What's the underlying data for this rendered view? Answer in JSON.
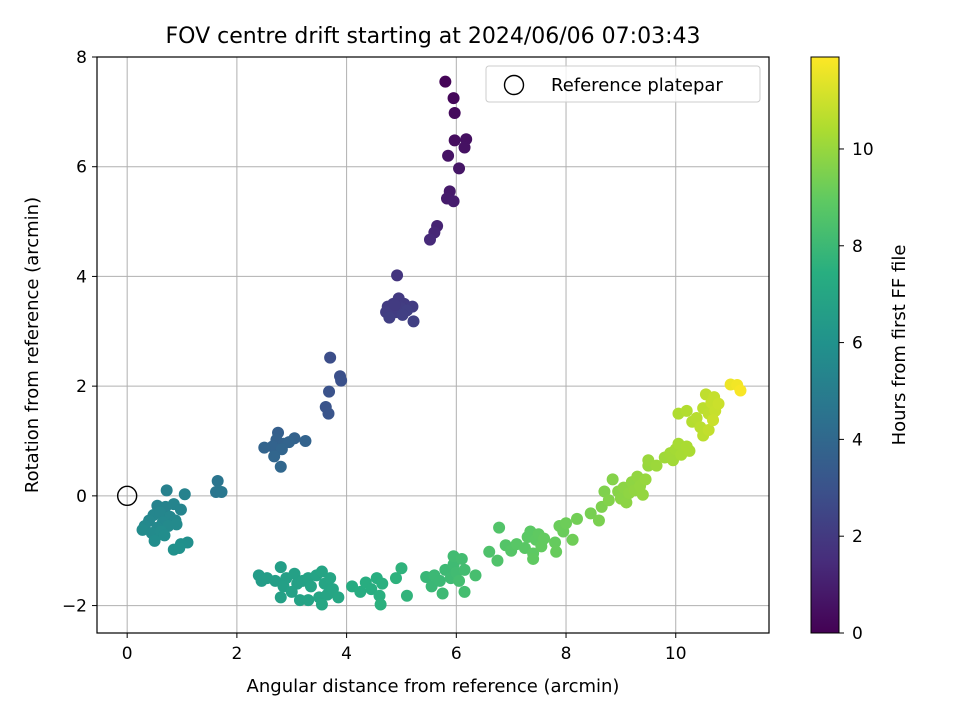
{
  "chart_data": {
    "type": "scatter",
    "title": "FOV centre drift starting at 2024/06/06 07:03:43",
    "xlabel": "Angular distance from reference (arcmin)",
    "ylabel": "Rotation from reference (arcmin)",
    "xlim": [
      -0.55,
      11.7
    ],
    "ylim": [
      -2.5,
      8.0
    ],
    "xticks": [
      0,
      2,
      4,
      6,
      8,
      10
    ],
    "yticks": [
      -2,
      0,
      2,
      4,
      6,
      8
    ],
    "grid": true,
    "legend": {
      "placement": "upper right",
      "entries": [
        {
          "label": "Reference platepar",
          "marker": "open-circle"
        }
      ]
    },
    "reference_point": {
      "x": 0.0,
      "y": 0.0
    },
    "colorbar": {
      "label": "Hours from first FF file",
      "min": 0,
      "max": 11.9,
      "ticks": [
        0,
        2,
        4,
        6,
        8,
        10
      ],
      "colormap": "viridis"
    },
    "points": [
      {
        "x": 5.8,
        "y": 7.55,
        "c": 0.1
      },
      {
        "x": 5.95,
        "y": 7.25,
        "c": 0.2
      },
      {
        "x": 5.97,
        "y": 6.98,
        "c": 0.3
      },
      {
        "x": 5.97,
        "y": 6.48,
        "c": 0.4
      },
      {
        "x": 6.18,
        "y": 6.5,
        "c": 0.5
      },
      {
        "x": 6.15,
        "y": 6.35,
        "c": 0.55
      },
      {
        "x": 5.85,
        "y": 6.2,
        "c": 0.6
      },
      {
        "x": 6.05,
        "y": 5.97,
        "c": 0.7
      },
      {
        "x": 5.88,
        "y": 5.55,
        "c": 0.85
      },
      {
        "x": 5.83,
        "y": 5.42,
        "c": 0.9
      },
      {
        "x": 5.95,
        "y": 5.37,
        "c": 0.95
      },
      {
        "x": 5.65,
        "y": 4.92,
        "c": 1.2
      },
      {
        "x": 5.6,
        "y": 4.8,
        "c": 1.3
      },
      {
        "x": 5.52,
        "y": 4.67,
        "c": 1.4
      },
      {
        "x": 4.92,
        "y": 4.02,
        "c": 1.8
      },
      {
        "x": 4.85,
        "y": 3.5,
        "c": 2.0
      },
      {
        "x": 4.95,
        "y": 3.6,
        "c": 2.0
      },
      {
        "x": 4.75,
        "y": 3.45,
        "c": 2.05
      },
      {
        "x": 5.05,
        "y": 3.5,
        "c": 2.05
      },
      {
        "x": 4.8,
        "y": 3.38,
        "c": 2.1
      },
      {
        "x": 5.2,
        "y": 3.45,
        "c": 2.1
      },
      {
        "x": 4.9,
        "y": 3.35,
        "c": 2.1
      },
      {
        "x": 5.0,
        "y": 3.42,
        "c": 2.15
      },
      {
        "x": 4.72,
        "y": 3.35,
        "c": 2.15
      },
      {
        "x": 5.1,
        "y": 3.38,
        "c": 2.2
      },
      {
        "x": 4.78,
        "y": 3.25,
        "c": 2.2
      },
      {
        "x": 5.22,
        "y": 3.18,
        "c": 2.25
      },
      {
        "x": 4.88,
        "y": 3.48,
        "c": 2.05
      },
      {
        "x": 5.02,
        "y": 3.3,
        "c": 2.2
      },
      {
        "x": 3.7,
        "y": 2.52,
        "c": 2.8
      },
      {
        "x": 3.88,
        "y": 2.18,
        "c": 2.9
      },
      {
        "x": 3.9,
        "y": 2.1,
        "c": 2.95
      },
      {
        "x": 3.68,
        "y": 1.9,
        "c": 3.0
      },
      {
        "x": 3.62,
        "y": 1.62,
        "c": 3.05
      },
      {
        "x": 3.67,
        "y": 1.5,
        "c": 3.1
      },
      {
        "x": 2.75,
        "y": 1.15,
        "c": 3.6
      },
      {
        "x": 2.72,
        "y": 1.02,
        "c": 3.65
      },
      {
        "x": 2.85,
        "y": 0.95,
        "c": 3.7
      },
      {
        "x": 3.05,
        "y": 1.05,
        "c": 3.7
      },
      {
        "x": 3.25,
        "y": 1.0,
        "c": 3.75
      },
      {
        "x": 2.65,
        "y": 0.9,
        "c": 3.75
      },
      {
        "x": 2.5,
        "y": 0.88,
        "c": 3.8
      },
      {
        "x": 2.95,
        "y": 0.98,
        "c": 3.8
      },
      {
        "x": 2.82,
        "y": 0.85,
        "c": 3.85
      },
      {
        "x": 2.68,
        "y": 0.72,
        "c": 3.9
      },
      {
        "x": 2.8,
        "y": 0.53,
        "c": 3.95
      },
      {
        "x": 1.65,
        "y": 0.27,
        "c": 4.6
      },
      {
        "x": 1.62,
        "y": 0.07,
        "c": 4.65
      },
      {
        "x": 1.72,
        "y": 0.07,
        "c": 4.7
      },
      {
        "x": 0.72,
        "y": 0.1,
        "c": 5.2
      },
      {
        "x": 1.05,
        "y": 0.03,
        "c": 5.25
      },
      {
        "x": 0.55,
        "y": -0.18,
        "c": 5.3
      },
      {
        "x": 0.7,
        "y": -0.2,
        "c": 5.3
      },
      {
        "x": 0.85,
        "y": -0.15,
        "c": 5.35
      },
      {
        "x": 0.98,
        "y": -0.25,
        "c": 5.35
      },
      {
        "x": 0.48,
        "y": -0.35,
        "c": 5.4
      },
      {
        "x": 0.6,
        "y": -0.3,
        "c": 5.4
      },
      {
        "x": 0.78,
        "y": -0.38,
        "c": 5.45
      },
      {
        "x": 0.4,
        "y": -0.45,
        "c": 5.45
      },
      {
        "x": 0.65,
        "y": -0.48,
        "c": 5.5
      },
      {
        "x": 0.88,
        "y": -0.45,
        "c": 5.5
      },
      {
        "x": 0.32,
        "y": -0.55,
        "c": 5.55
      },
      {
        "x": 0.55,
        "y": -0.58,
        "c": 5.55
      },
      {
        "x": 0.75,
        "y": -0.55,
        "c": 5.6
      },
      {
        "x": 0.9,
        "y": -0.52,
        "c": 5.6
      },
      {
        "x": 0.28,
        "y": -0.62,
        "c": 5.65
      },
      {
        "x": 0.45,
        "y": -0.68,
        "c": 5.65
      },
      {
        "x": 0.62,
        "y": -0.65,
        "c": 5.7
      },
      {
        "x": 0.5,
        "y": -0.82,
        "c": 5.75
      },
      {
        "x": 0.68,
        "y": -0.72,
        "c": 5.75
      },
      {
        "x": 1.1,
        "y": -0.85,
        "c": 5.85
      },
      {
        "x": 0.98,
        "y": -0.88,
        "c": 5.9
      },
      {
        "x": 0.85,
        "y": -0.98,
        "c": 5.95
      },
      {
        "x": 0.95,
        "y": -0.95,
        "c": 5.95
      },
      {
        "x": 2.4,
        "y": -1.45,
        "c": 6.5
      },
      {
        "x": 2.45,
        "y": -1.55,
        "c": 6.5
      },
      {
        "x": 2.55,
        "y": -1.5,
        "c": 6.55
      },
      {
        "x": 2.7,
        "y": -1.55,
        "c": 6.6
      },
      {
        "x": 2.8,
        "y": -1.3,
        "c": 6.6
      },
      {
        "x": 2.9,
        "y": -1.5,
        "c": 6.65
      },
      {
        "x": 2.85,
        "y": -1.65,
        "c": 6.65
      },
      {
        "x": 3.05,
        "y": -1.42,
        "c": 6.7
      },
      {
        "x": 3.1,
        "y": -1.6,
        "c": 6.7
      },
      {
        "x": 3.0,
        "y": -1.75,
        "c": 6.75
      },
      {
        "x": 3.2,
        "y": -1.55,
        "c": 6.75
      },
      {
        "x": 3.15,
        "y": -1.9,
        "c": 6.8
      },
      {
        "x": 3.3,
        "y": -1.5,
        "c": 6.8
      },
      {
        "x": 3.35,
        "y": -1.65,
        "c": 6.85
      },
      {
        "x": 3.45,
        "y": -1.45,
        "c": 6.85
      },
      {
        "x": 3.5,
        "y": -1.85,
        "c": 6.9
      },
      {
        "x": 3.55,
        "y": -1.38,
        "c": 6.9
      },
      {
        "x": 3.6,
        "y": -1.6,
        "c": 6.95
      },
      {
        "x": 3.65,
        "y": -1.8,
        "c": 6.95
      },
      {
        "x": 3.7,
        "y": -1.5,
        "c": 7.0
      },
      {
        "x": 3.75,
        "y": -1.7,
        "c": 7.0
      },
      {
        "x": 3.85,
        "y": -1.85,
        "c": 7.05
      },
      {
        "x": 3.55,
        "y": -1.98,
        "c": 7.05
      },
      {
        "x": 2.8,
        "y": -1.85,
        "c": 6.7
      },
      {
        "x": 3.3,
        "y": -1.9,
        "c": 6.85
      },
      {
        "x": 4.1,
        "y": -1.65,
        "c": 7.3
      },
      {
        "x": 4.25,
        "y": -1.75,
        "c": 7.35
      },
      {
        "x": 4.35,
        "y": -1.58,
        "c": 7.4
      },
      {
        "x": 4.45,
        "y": -1.7,
        "c": 7.4
      },
      {
        "x": 4.55,
        "y": -1.5,
        "c": 7.45
      },
      {
        "x": 4.6,
        "y": -1.82,
        "c": 7.5
      },
      {
        "x": 4.65,
        "y": -1.6,
        "c": 7.5
      },
      {
        "x": 4.62,
        "y": -1.98,
        "c": 7.55
      },
      {
        "x": 4.9,
        "y": -1.5,
        "c": 7.6
      },
      {
        "x": 5.0,
        "y": -1.32,
        "c": 7.65
      },
      {
        "x": 5.1,
        "y": -1.82,
        "c": 7.7
      },
      {
        "x": 5.45,
        "y": -1.48,
        "c": 7.9
      },
      {
        "x": 5.55,
        "y": -1.65,
        "c": 7.95
      },
      {
        "x": 5.6,
        "y": -1.45,
        "c": 8.0
      },
      {
        "x": 5.7,
        "y": -1.55,
        "c": 8.0
      },
      {
        "x": 5.75,
        "y": -1.78,
        "c": 8.05
      },
      {
        "x": 5.8,
        "y": -1.35,
        "c": 8.05
      },
      {
        "x": 5.9,
        "y": -1.5,
        "c": 8.1
      },
      {
        "x": 5.95,
        "y": -1.25,
        "c": 8.1
      },
      {
        "x": 6.0,
        "y": -1.4,
        "c": 8.15
      },
      {
        "x": 5.95,
        "y": -1.1,
        "c": 8.15
      },
      {
        "x": 6.1,
        "y": -1.15,
        "c": 8.2
      },
      {
        "x": 6.15,
        "y": -1.35,
        "c": 8.2
      },
      {
        "x": 6.05,
        "y": -1.55,
        "c": 8.25
      },
      {
        "x": 6.15,
        "y": -1.75,
        "c": 8.25
      },
      {
        "x": 6.35,
        "y": -1.45,
        "c": 8.3
      },
      {
        "x": 6.6,
        "y": -1.02,
        "c": 8.5
      },
      {
        "x": 6.75,
        "y": -1.18,
        "c": 8.55
      },
      {
        "x": 6.78,
        "y": -0.58,
        "c": 8.6
      },
      {
        "x": 6.9,
        "y": -0.9,
        "c": 8.65
      },
      {
        "x": 7.0,
        "y": -1.0,
        "c": 8.7
      },
      {
        "x": 7.1,
        "y": -0.88,
        "c": 8.75
      },
      {
        "x": 7.25,
        "y": -0.95,
        "c": 8.8
      },
      {
        "x": 7.3,
        "y": -0.75,
        "c": 8.85
      },
      {
        "x": 7.35,
        "y": -0.65,
        "c": 8.85
      },
      {
        "x": 7.4,
        "y": -1.05,
        "c": 8.9
      },
      {
        "x": 7.45,
        "y": -0.8,
        "c": 8.9
      },
      {
        "x": 7.5,
        "y": -0.7,
        "c": 8.95
      },
      {
        "x": 7.4,
        "y": -1.15,
        "c": 8.95
      },
      {
        "x": 7.55,
        "y": -0.92,
        "c": 9.0
      },
      {
        "x": 7.6,
        "y": -0.78,
        "c": 9.0
      },
      {
        "x": 7.8,
        "y": -0.85,
        "c": 9.05
      },
      {
        "x": 7.82,
        "y": -1.02,
        "c": 9.1
      },
      {
        "x": 7.88,
        "y": -0.55,
        "c": 9.15
      },
      {
        "x": 7.95,
        "y": -0.65,
        "c": 9.15
      },
      {
        "x": 8.0,
        "y": -0.5,
        "c": 9.2
      },
      {
        "x": 8.12,
        "y": -0.8,
        "c": 9.25
      },
      {
        "x": 8.2,
        "y": -0.42,
        "c": 9.3
      },
      {
        "x": 8.45,
        "y": -0.32,
        "c": 9.4
      },
      {
        "x": 8.6,
        "y": -0.45,
        "c": 9.45
      },
      {
        "x": 8.65,
        "y": -0.2,
        "c": 9.5
      },
      {
        "x": 8.7,
        "y": 0.08,
        "c": 9.55
      },
      {
        "x": 8.78,
        "y": -0.08,
        "c": 9.6
      },
      {
        "x": 8.85,
        "y": 0.3,
        "c": 9.65
      },
      {
        "x": 8.95,
        "y": 0.08,
        "c": 9.7
      },
      {
        "x": 9.0,
        "y": -0.05,
        "c": 9.75
      },
      {
        "x": 9.05,
        "y": 0.15,
        "c": 9.8
      },
      {
        "x": 9.1,
        "y": -0.12,
        "c": 9.8
      },
      {
        "x": 9.15,
        "y": 0.05,
        "c": 9.85
      },
      {
        "x": 9.2,
        "y": 0.25,
        "c": 9.85
      },
      {
        "x": 9.25,
        "y": 0.1,
        "c": 9.9
      },
      {
        "x": 9.3,
        "y": 0.35,
        "c": 9.9
      },
      {
        "x": 9.35,
        "y": 0.18,
        "c": 9.95
      },
      {
        "x": 9.4,
        "y": 0.02,
        "c": 9.95
      },
      {
        "x": 9.45,
        "y": 0.3,
        "c": 10.0
      },
      {
        "x": 9.5,
        "y": 0.55,
        "c": 10.0
      },
      {
        "x": 9.5,
        "y": 0.65,
        "c": 10.05
      },
      {
        "x": 9.65,
        "y": 0.55,
        "c": 10.1
      },
      {
        "x": 9.8,
        "y": 0.7,
        "c": 10.15
      },
      {
        "x": 9.9,
        "y": 0.78,
        "c": 10.2
      },
      {
        "x": 9.95,
        "y": 0.65,
        "c": 10.2
      },
      {
        "x": 10.0,
        "y": 0.85,
        "c": 10.25
      },
      {
        "x": 10.05,
        "y": 0.95,
        "c": 10.3
      },
      {
        "x": 10.1,
        "y": 0.75,
        "c": 10.3
      },
      {
        "x": 10.2,
        "y": 0.9,
        "c": 10.35
      },
      {
        "x": 10.25,
        "y": 0.82,
        "c": 10.35
      },
      {
        "x": 10.05,
        "y": 1.5,
        "c": 10.45
      },
      {
        "x": 10.2,
        "y": 1.55,
        "c": 10.5
      },
      {
        "x": 10.3,
        "y": 1.35,
        "c": 10.55
      },
      {
        "x": 10.38,
        "y": 1.42,
        "c": 10.6
      },
      {
        "x": 10.45,
        "y": 1.25,
        "c": 10.65
      },
      {
        "x": 10.5,
        "y": 1.1,
        "c": 10.7
      },
      {
        "x": 10.5,
        "y": 1.6,
        "c": 10.7
      },
      {
        "x": 10.55,
        "y": 1.85,
        "c": 10.75
      },
      {
        "x": 10.6,
        "y": 1.5,
        "c": 10.75
      },
      {
        "x": 10.6,
        "y": 1.2,
        "c": 10.8
      },
      {
        "x": 10.65,
        "y": 1.7,
        "c": 10.85
      },
      {
        "x": 10.7,
        "y": 1.8,
        "c": 10.85
      },
      {
        "x": 10.72,
        "y": 1.55,
        "c": 10.9
      },
      {
        "x": 10.78,
        "y": 1.68,
        "c": 10.95
      },
      {
        "x": 10.68,
        "y": 1.38,
        "c": 10.95
      },
      {
        "x": 11.0,
        "y": 2.03,
        "c": 11.6
      },
      {
        "x": 11.12,
        "y": 2.02,
        "c": 11.7
      },
      {
        "x": 11.18,
        "y": 1.92,
        "c": 11.8
      }
    ]
  }
}
